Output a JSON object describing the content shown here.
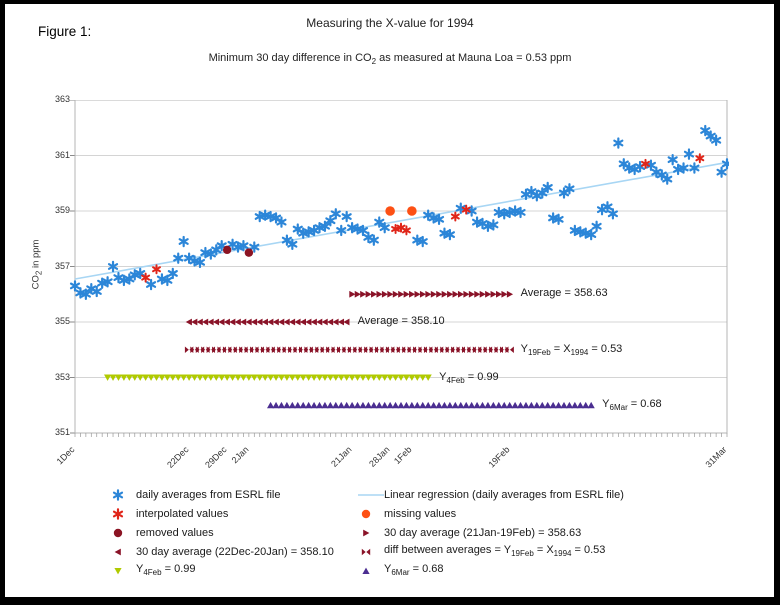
{
  "page": {
    "figure_label": "Figure 1:"
  },
  "chart_data": {
    "type": "scatter",
    "title": "Measuring the X-value for 1994",
    "subtitle": "Minimum 30 day difference in CO_{2} as measured at Mauna Loa = 0.53 ppm",
    "ylabel": "CO_{2} in ppm",
    "ylim": [
      351,
      363
    ],
    "yticks": [
      363,
      361,
      359,
      357,
      355,
      353,
      351
    ],
    "grid": true,
    "x_axis": {
      "start": "1Dec",
      "end": "31Mar",
      "total_days": 121,
      "tick_labels": [
        {
          "label": "1Dec",
          "day": 0
        },
        {
          "label": "22Dec",
          "day": 21
        },
        {
          "label": "29Dec",
          "day": 28
        },
        {
          "label": "2Jan",
          "day": 32
        },
        {
          "label": "21Jan",
          "day": 51
        },
        {
          "label": "28Jan",
          "day": 58
        },
        {
          "label": "1Feb",
          "day": 62
        },
        {
          "label": "19Feb",
          "day": 80
        },
        {
          "label": "31Mar",
          "day": 120
        }
      ]
    },
    "series": [
      {
        "name": "daily averages from ESRL file",
        "marker": "star",
        "color": "#2c86d8",
        "points": [
          [
            0,
            356.3
          ],
          [
            1,
            356.05
          ],
          [
            2,
            356.0
          ],
          [
            3,
            356.2
          ],
          [
            4,
            356.1
          ],
          [
            5,
            356.4
          ],
          [
            6,
            356.45
          ],
          [
            7,
            357.0
          ],
          [
            8,
            356.6
          ],
          [
            9,
            356.5
          ],
          [
            10,
            356.55
          ],
          [
            11,
            356.7
          ],
          [
            12,
            356.75
          ],
          [
            14,
            356.35
          ],
          [
            16,
            356.55
          ],
          [
            17,
            356.5
          ],
          [
            18,
            356.75
          ],
          [
            19,
            357.3
          ],
          [
            20,
            357.9
          ],
          [
            21,
            357.3
          ],
          [
            22,
            357.2
          ],
          [
            23,
            357.15
          ],
          [
            24,
            357.5
          ],
          [
            25,
            357.45
          ],
          [
            26,
            357.6
          ],
          [
            27,
            357.75
          ],
          [
            29,
            357.8
          ],
          [
            30,
            357.7
          ],
          [
            31,
            357.75
          ],
          [
            33,
            357.7
          ],
          [
            34,
            358.8
          ],
          [
            35,
            358.85
          ],
          [
            36,
            358.8
          ],
          [
            37,
            358.75
          ],
          [
            38,
            358.6
          ],
          [
            39,
            357.95
          ],
          [
            40,
            357.8
          ],
          [
            41,
            358.35
          ],
          [
            42,
            358.2
          ],
          [
            43,
            358.25
          ],
          [
            44,
            358.3
          ],
          [
            45,
            358.4
          ],
          [
            46,
            358.45
          ],
          [
            47,
            358.65
          ],
          [
            48,
            358.9
          ],
          [
            49,
            358.3
          ],
          [
            50,
            358.8
          ],
          [
            51,
            358.4
          ],
          [
            52,
            358.35
          ],
          [
            53,
            358.3
          ],
          [
            54,
            358.05
          ],
          [
            55,
            357.95
          ],
          [
            56,
            358.6
          ],
          [
            57,
            358.4
          ],
          [
            63,
            357.95
          ],
          [
            64,
            357.9
          ],
          [
            65,
            358.85
          ],
          [
            66,
            358.75
          ],
          [
            67,
            358.7
          ],
          [
            68,
            358.2
          ],
          [
            69,
            358.15
          ],
          [
            71,
            359.1
          ],
          [
            73,
            359.0
          ],
          [
            74,
            358.6
          ],
          [
            75,
            358.55
          ],
          [
            76,
            358.45
          ],
          [
            77,
            358.5
          ],
          [
            78,
            358.95
          ],
          [
            79,
            358.9
          ],
          [
            80,
            358.95
          ],
          [
            81,
            359.0
          ],
          [
            82,
            358.95
          ],
          [
            83,
            359.6
          ],
          [
            84,
            359.7
          ],
          [
            85,
            359.55
          ],
          [
            86,
            359.65
          ],
          [
            87,
            359.85
          ],
          [
            88,
            358.75
          ],
          [
            89,
            358.7
          ],
          [
            90,
            359.65
          ],
          [
            91,
            359.8
          ],
          [
            92,
            358.3
          ],
          [
            93,
            358.25
          ],
          [
            94,
            358.2
          ],
          [
            95,
            358.15
          ],
          [
            96,
            358.45
          ],
          [
            97,
            359.05
          ],
          [
            98,
            359.15
          ],
          [
            99,
            358.9
          ],
          [
            100,
            361.45
          ],
          [
            101,
            360.7
          ],
          [
            102,
            360.55
          ],
          [
            103,
            360.5
          ],
          [
            104,
            360.6
          ],
          [
            106,
            360.65
          ],
          [
            107,
            360.4
          ],
          [
            108,
            360.3
          ],
          [
            109,
            360.15
          ],
          [
            110,
            360.85
          ],
          [
            111,
            360.5
          ],
          [
            112,
            360.55
          ],
          [
            113,
            361.05
          ],
          [
            114,
            360.55
          ],
          [
            116,
            361.9
          ],
          [
            117,
            361.7
          ],
          [
            118,
            361.55
          ],
          [
            119,
            360.4
          ],
          [
            120,
            360.7
          ]
        ]
      },
      {
        "name": "interpolated values",
        "marker": "star",
        "color": "#e02519",
        "points": [
          [
            13,
            356.6
          ],
          [
            15,
            356.9
          ],
          [
            59,
            358.35
          ],
          [
            60,
            358.4
          ],
          [
            61,
            358.3
          ],
          [
            70,
            358.8
          ],
          [
            72,
            359.05
          ],
          [
            105,
            360.7
          ],
          [
            115,
            360.9
          ]
        ]
      },
      {
        "name": "removed values",
        "marker": "circle",
        "color": "#8b1423",
        "points": [
          [
            28,
            357.6
          ],
          [
            32,
            357.5
          ]
        ]
      },
      {
        "name": "missing values",
        "marker": "circle",
        "color": "#fd5014",
        "points": [
          [
            58,
            359.0
          ],
          [
            62,
            359.0
          ]
        ]
      },
      {
        "name": "Linear regression (daily averages from ESRL file)",
        "marker": "line",
        "color": "#a8d6f4",
        "line": [
          [
            0,
            356.55
          ],
          [
            120,
            360.75
          ]
        ]
      },
      {
        "name": "30 day average (21Jan-19Feb) = 358.63",
        "marker": "triangle-right",
        "color": "#8a1328",
        "band_y": 356,
        "band_days": [
          51,
          80
        ],
        "annotation": "Average = 358.63"
      },
      {
        "name": "30 day average (22Dec-20Jan) = 358.10",
        "marker": "triangle-left",
        "color": "#8a1328",
        "band_y": 355,
        "band_days": [
          21,
          50
        ],
        "annotation": "Average = 358.10"
      },
      {
        "name": "diff between averages = Y19Feb = X1994 = 0.53",
        "marker": "bowtie",
        "color": "#8a1328",
        "band_y": 354,
        "band_days": [
          21,
          80
        ],
        "annotation": "Y_{19Feb} = X_{1994} = 0.53"
      },
      {
        "name": "Y4Feb = 0.99",
        "marker": "triangle-down",
        "color": "#b0ca00",
        "band_y": 353,
        "band_days": [
          6,
          65
        ],
        "annotation": "Y_{4Feb} = 0.99"
      },
      {
        "name": "Y6Mar = 0.68",
        "marker": "triangle-up",
        "color": "#4b2e91",
        "band_y": 352,
        "band_days": [
          36,
          95
        ],
        "annotation": "Y_{6Mar} = 0.68"
      }
    ]
  },
  "legend": {
    "left": [
      {
        "marker": "star",
        "color": "#2c86d8",
        "label": "daily averages from ESRL file"
      },
      {
        "marker": "star",
        "color": "#e02519",
        "label": "interpolated values"
      },
      {
        "marker": "circle",
        "color": "#8b1423",
        "label": "removed values"
      },
      {
        "marker": "triangle-left",
        "color": "#8a1328",
        "label": "30 day average (22Dec-20Jan) = 358.10"
      },
      {
        "marker": "triangle-down",
        "color": "#b0ca00",
        "label": "Y_{4Feb} = 0.99"
      }
    ],
    "right": [
      {
        "marker": "line",
        "color": "#a8d6f4",
        "label": "Linear regression  (daily averages from ESRL file)"
      },
      {
        "marker": "circle",
        "color": "#fd5014",
        "label": "missing values"
      },
      {
        "marker": "triangle-right",
        "color": "#8a1328",
        "label": "30 day average (21Jan-19Feb)  = 358.63"
      },
      {
        "marker": "bowtie",
        "color": "#8a1328",
        "label": "diff between averages = Y_{19Feb} = X_{1994} = 0.53"
      },
      {
        "marker": "triangle-up",
        "color": "#4b2e91",
        "label": "Y_{6Mar} = 0.68"
      }
    ]
  }
}
